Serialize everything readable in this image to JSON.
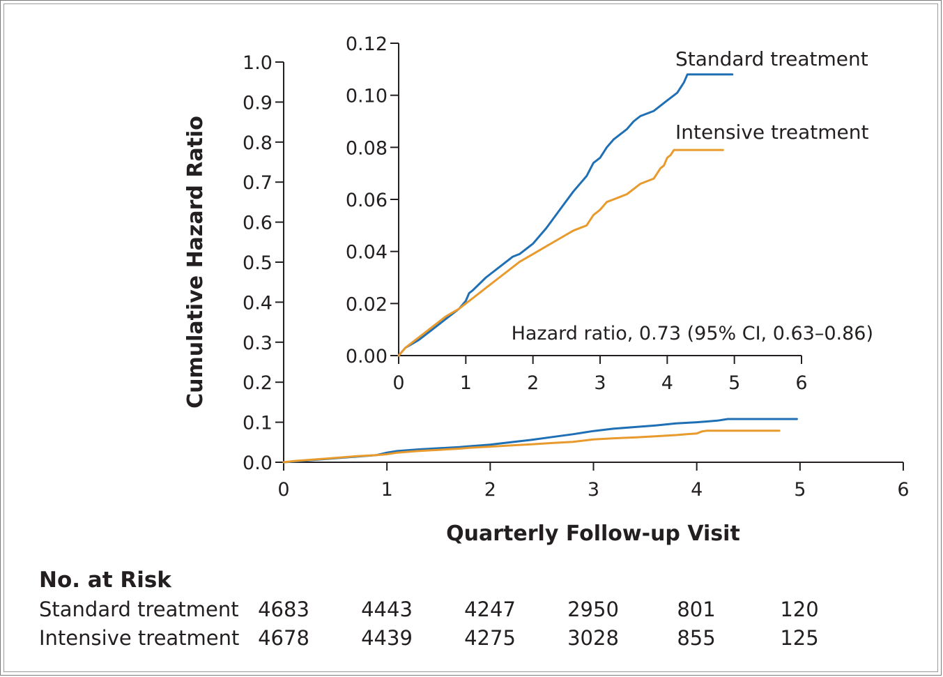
{
  "chart_data": [
    {
      "id": "main",
      "type": "line",
      "xlabel": "Quarterly Follow-up Visit",
      "ylabel": "Cumulative Hazard Ratio",
      "xlim": [
        0,
        6
      ],
      "ylim": [
        0,
        1.0
      ],
      "xticks": [
        "0",
        "1",
        "2",
        "3",
        "4",
        "5",
        "6"
      ],
      "yticks": [
        "0.0",
        "0.1",
        "0.2",
        "0.3",
        "0.4",
        "0.5",
        "0.6",
        "0.7",
        "0.8",
        "0.9",
        "1.0"
      ],
      "grid": false,
      "series": [
        {
          "name": "Standard treatment",
          "color": "#1f6fb4",
          "x": [
            0,
            0.1,
            0.2,
            0.3,
            0.5,
            0.7,
            0.9,
            1.0,
            1.1,
            1.3,
            1.5,
            1.7,
            1.8,
            2.0,
            2.2,
            2.4,
            2.6,
            2.8,
            2.9,
            3.0,
            3.2,
            3.4,
            3.6,
            3.8,
            4.0,
            4.1,
            4.2,
            4.3,
            4.6,
            4.97
          ],
          "y": [
            0,
            0.002,
            0.004,
            0.006,
            0.01,
            0.014,
            0.018,
            0.024,
            0.028,
            0.032,
            0.035,
            0.038,
            0.04,
            0.044,
            0.05,
            0.056,
            0.063,
            0.07,
            0.074,
            0.078,
            0.084,
            0.088,
            0.092,
            0.097,
            0.1,
            0.102,
            0.104,
            0.108,
            0.108,
            0.108
          ]
        },
        {
          "name": "Intensive treatment",
          "color": "#e89a2c",
          "x": [
            0,
            0.1,
            0.2,
            0.3,
            0.5,
            0.7,
            0.9,
            1.0,
            1.1,
            1.3,
            1.5,
            1.7,
            1.8,
            2.0,
            2.2,
            2.4,
            2.6,
            2.8,
            2.9,
            3.0,
            3.2,
            3.4,
            3.6,
            3.8,
            3.9,
            4.0,
            4.05,
            4.1,
            4.4,
            4.8
          ],
          "y": [
            0,
            0.003,
            0.005,
            0.007,
            0.011,
            0.015,
            0.018,
            0.02,
            0.024,
            0.028,
            0.031,
            0.034,
            0.036,
            0.039,
            0.042,
            0.045,
            0.048,
            0.051,
            0.054,
            0.057,
            0.06,
            0.062,
            0.065,
            0.068,
            0.07,
            0.072,
            0.077,
            0.079,
            0.079,
            0.079
          ]
        }
      ]
    },
    {
      "id": "inset",
      "type": "line",
      "xlim": [
        0,
        6
      ],
      "ylim": [
        0,
        0.12
      ],
      "xticks": [
        "0",
        "1",
        "2",
        "3",
        "4",
        "5",
        "6"
      ],
      "yticks": [
        "0.00",
        "0.02",
        "0.04",
        "0.06",
        "0.08",
        "0.10",
        "0.12"
      ],
      "grid": false,
      "annotation": "Hazard ratio, 0.73 (95% CI, 0.63–0.86)",
      "series": [
        {
          "name": "Standard treatment",
          "color": "#1f6fb4",
          "x": [
            0,
            0.1,
            0.3,
            0.5,
            0.7,
            0.9,
            1.0,
            1.05,
            1.1,
            1.3,
            1.5,
            1.7,
            1.8,
            2.0,
            2.2,
            2.4,
            2.6,
            2.8,
            2.9,
            3.0,
            3.1,
            3.2,
            3.4,
            3.5,
            3.6,
            3.8,
            3.9,
            4.0,
            4.1,
            4.15,
            4.2,
            4.25,
            4.3,
            4.6,
            4.97
          ],
          "y": [
            0,
            0.003,
            0.006,
            0.01,
            0.014,
            0.018,
            0.021,
            0.024,
            0.025,
            0.03,
            0.034,
            0.038,
            0.039,
            0.043,
            0.049,
            0.056,
            0.063,
            0.069,
            0.074,
            0.076,
            0.08,
            0.083,
            0.087,
            0.09,
            0.092,
            0.094,
            0.096,
            0.098,
            0.1,
            0.101,
            0.103,
            0.105,
            0.108,
            0.108,
            0.108
          ]
        },
        {
          "name": "Intensive treatment",
          "color": "#e89a2c",
          "x": [
            0,
            0.1,
            0.3,
            0.5,
            0.7,
            0.9,
            1.0,
            1.1,
            1.3,
            1.5,
            1.7,
            1.8,
            2.0,
            2.2,
            2.4,
            2.6,
            2.8,
            2.9,
            3.0,
            3.1,
            3.2,
            3.4,
            3.5,
            3.6,
            3.8,
            3.85,
            3.9,
            3.95,
            4.0,
            4.05,
            4.1,
            4.4,
            4.83
          ],
          "y": [
            0,
            0.003,
            0.007,
            0.011,
            0.015,
            0.018,
            0.02,
            0.022,
            0.026,
            0.03,
            0.034,
            0.036,
            0.039,
            0.042,
            0.045,
            0.048,
            0.05,
            0.054,
            0.056,
            0.059,
            0.06,
            0.062,
            0.064,
            0.066,
            0.068,
            0.07,
            0.072,
            0.073,
            0.076,
            0.077,
            0.079,
            0.079,
            0.079
          ]
        }
      ]
    }
  ],
  "risk_table": {
    "title": "No. at Risk",
    "rows": [
      {
        "label": "Standard treatment",
        "values": [
          "4683",
          "4443",
          "4247",
          "2950",
          "801",
          "120"
        ]
      },
      {
        "label": "Intensive treatment",
        "values": [
          "4678",
          "4439",
          "4275",
          "3028",
          "855",
          "125"
        ]
      }
    ]
  }
}
